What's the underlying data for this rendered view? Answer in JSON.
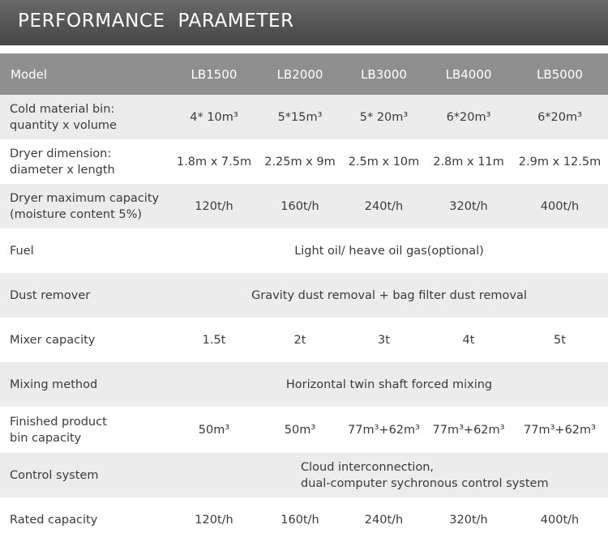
{
  "banner": {
    "title": "PERFORMANCE  PARAMETER"
  },
  "table": {
    "header": [
      "Model",
      "LB1500",
      "LB2000",
      "LB3000",
      "LB4000",
      "LB5000"
    ],
    "rows": [
      {
        "label": [
          "Cold material bin:",
          "quantity x volume"
        ],
        "values": [
          "4* 10m³",
          "5*15m³",
          "5* 20m³",
          "6*20m³",
          "6*20m³"
        ]
      },
      {
        "label": [
          "Dryer dimension:",
          "diameter x length"
        ],
        "values": [
          "1.8m x 7.5m",
          "2.25m x 9m",
          "2.5m x 10m",
          "2.8m x 11m",
          "2.9m x 12.5m"
        ]
      },
      {
        "label": [
          "Dryer maximum capacity",
          "(moisture content 5%)"
        ],
        "values": [
          "120t/h",
          "160t/h",
          "240t/h",
          "320t/h",
          "400t/h"
        ]
      },
      {
        "label": [
          "Fuel"
        ],
        "merged": "Light oil/ heave oil gas(optional)"
      },
      {
        "label": [
          "Dust remover"
        ],
        "merged": "Gravity dust removal + bag filter dust removal"
      },
      {
        "label": [
          "Mixer capacity"
        ],
        "values": [
          "1.5t",
          "2t",
          "3t",
          "4t",
          "5t"
        ]
      },
      {
        "label": [
          "Mixing method"
        ],
        "merged": "Horizontal twin shaft forced mixing"
      },
      {
        "label": [
          "Finished product",
          "bin capacity"
        ],
        "values": [
          "50m³",
          "50m³",
          "77m³+62m³",
          "77m³+62m³",
          "77m³+62m³"
        ]
      },
      {
        "label": [
          "Control system"
        ],
        "merged_lines": [
          "Cloud interconnection,",
          "dual-computer sychronous control system"
        ]
      },
      {
        "label": [
          "Rated capacity"
        ],
        "values": [
          "120t/h",
          "160t/h",
          "240t/h",
          "320t/h",
          "400t/h"
        ]
      }
    ]
  }
}
